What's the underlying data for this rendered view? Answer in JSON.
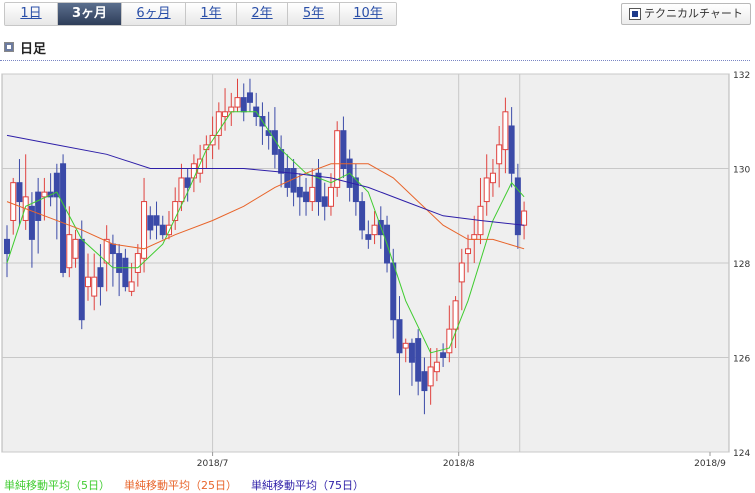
{
  "tabs": [
    {
      "label": "1日",
      "active": false
    },
    {
      "label": "3ヶ月",
      "active": true
    },
    {
      "label": "6ヶ月",
      "active": false
    },
    {
      "label": "1年",
      "active": false
    },
    {
      "label": "2年",
      "active": false
    },
    {
      "label": "5年",
      "active": false
    },
    {
      "label": "10年",
      "active": false
    }
  ],
  "technical_button": {
    "label": "テクニカルチャート",
    "icon": "window-icon"
  },
  "section_title": "日足",
  "colors": {
    "up": "#e0423e",
    "down": "#3b4aa8",
    "ma5": "#3fcc2f",
    "ma25": "#e8642a",
    "ma75": "#2e1fa8",
    "grid": "#c8c8c8",
    "bg": "#efefef"
  },
  "chart_data": {
    "type": "candlestick",
    "ylim": [
      124,
      132
    ],
    "y_ticks": [
      "132",
      "130",
      "128",
      "126",
      "124"
    ],
    "x_labels": [
      "2018/7",
      "2018/8",
      "2018/9"
    ],
    "candles": [
      [
        128.5,
        128.2,
        128.8,
        127.7
      ],
      [
        128.9,
        129.7,
        129.8,
        128.6
      ],
      [
        129.7,
        129.3,
        130.2,
        128.8
      ],
      [
        128.9,
        129.4,
        130.3,
        128.7
      ],
      [
        129.2,
        128.5,
        129.5,
        127.9
      ],
      [
        129.5,
        128.9,
        129.8,
        128.2
      ],
      [
        129.4,
        129.5,
        129.8,
        128.9
      ],
      [
        129.5,
        129.4,
        129.9,
        129.2
      ],
      [
        129.9,
        129.4,
        130.1,
        128.5
      ],
      [
        130.1,
        127.8,
        130.3,
        127.7
      ],
      [
        127.9,
        128.6,
        129.2,
        127.7
      ],
      [
        128.1,
        128.5,
        128.7,
        127.9
      ],
      [
        128.5,
        126.8,
        128.9,
        126.6
      ],
      [
        127.5,
        127.7,
        128.2,
        127.2
      ],
      [
        127.3,
        127.7,
        128.2,
        127.0
      ],
      [
        127.9,
        127.5,
        128.4,
        127.1
      ],
      [
        128.0,
        128.5,
        128.8,
        127.4
      ],
      [
        128.4,
        128.2,
        128.6,
        127.5
      ],
      [
        128.2,
        127.8,
        128.4,
        127.3
      ],
      [
        128.1,
        127.5,
        128.3,
        127.4
      ],
      [
        127.4,
        127.6,
        128.0,
        127.3
      ],
      [
        127.8,
        128.2,
        128.4,
        127.5
      ],
      [
        128.1,
        129.3,
        129.8,
        127.8
      ],
      [
        129.0,
        128.7,
        129.2,
        128.5
      ],
      [
        129.0,
        128.8,
        129.3,
        128.5
      ],
      [
        128.8,
        128.6,
        129.0,
        128.5
      ],
      [
        128.6,
        128.8,
        129.1,
        128.5
      ],
      [
        128.9,
        129.3,
        129.6,
        128.7
      ],
      [
        129.3,
        129.8,
        130.1,
        129.1
      ],
      [
        129.8,
        129.6,
        130.0,
        129.3
      ],
      [
        129.8,
        130.1,
        130.3,
        129.5
      ],
      [
        129.9,
        130.2,
        130.5,
        129.7
      ],
      [
        130.4,
        130.5,
        130.7,
        130.0
      ],
      [
        130.5,
        130.7,
        131.1,
        130.2
      ],
      [
        130.7,
        131.2,
        131.4,
        130.4
      ],
      [
        131.1,
        131.2,
        131.7,
        130.8
      ],
      [
        131.2,
        131.3,
        131.6,
        130.9
      ],
      [
        131.3,
        131.5,
        131.9,
        131.2
      ],
      [
        131.5,
        131.2,
        131.8,
        131.0
      ],
      [
        131.6,
        131.4,
        131.9,
        131.2
      ],
      [
        131.3,
        131.1,
        131.6,
        130.9
      ],
      [
        131.1,
        130.9,
        131.4,
        130.5
      ],
      [
        130.8,
        130.7,
        131.2,
        130.4
      ],
      [
        130.8,
        130.3,
        131.3,
        130.0
      ],
      [
        130.4,
        129.9,
        130.7,
        129.6
      ],
      [
        130.0,
        129.6,
        130.3,
        129.4
      ],
      [
        130.0,
        129.5,
        130.2,
        129.2
      ],
      [
        129.6,
        129.4,
        129.9,
        129.0
      ],
      [
        129.5,
        129.3,
        129.8,
        129.0
      ],
      [
        129.3,
        129.6,
        130.0,
        129.1
      ],
      [
        129.9,
        129.3,
        130.2,
        129.0
      ],
      [
        129.4,
        129.2,
        129.7,
        128.9
      ],
      [
        129.2,
        129.6,
        129.9,
        129.0
      ],
      [
        129.6,
        130.8,
        131.0,
        129.4
      ],
      [
        130.8,
        130.0,
        131.1,
        129.8
      ],
      [
        130.2,
        129.6,
        130.4,
        129.3
      ],
      [
        129.8,
        129.3,
        130.1,
        129.0
      ],
      [
        129.3,
        128.7,
        129.5,
        128.5
      ],
      [
        128.6,
        128.5,
        128.9,
        128.3
      ],
      [
        128.6,
        128.8,
        129.1,
        128.4
      ],
      [
        128.9,
        128.6,
        129.2,
        128.3
      ],
      [
        128.8,
        128.0,
        129.0,
        127.8
      ],
      [
        128.0,
        126.8,
        128.3,
        126.4
      ],
      [
        126.8,
        126.1,
        127.3,
        125.2
      ],
      [
        126.2,
        126.3,
        126.4,
        125.9
      ],
      [
        126.3,
        125.9,
        126.4,
        125.4
      ],
      [
        126.4,
        125.5,
        126.6,
        125.2
      ],
      [
        125.7,
        125.3,
        126.0,
        124.8
      ],
      [
        125.4,
        125.8,
        126.2,
        125.0
      ],
      [
        125.7,
        125.9,
        126.2,
        125.5
      ],
      [
        126.1,
        126.0,
        126.3,
        125.8
      ],
      [
        126.1,
        126.6,
        127.1,
        125.9
      ],
      [
        126.6,
        127.2,
        127.3,
        126.2
      ],
      [
        127.6,
        128.0,
        128.3,
        127.0
      ],
      [
        128.2,
        128.3,
        128.6,
        127.8
      ],
      [
        128.5,
        128.6,
        129.0,
        128.0
      ],
      [
        128.6,
        129.2,
        129.8,
        128.4
      ],
      [
        129.3,
        129.8,
        130.3,
        129.0
      ],
      [
        129.7,
        129.9,
        130.2,
        129.4
      ],
      [
        130.1,
        130.5,
        130.9,
        129.6
      ],
      [
        130.4,
        131.2,
        131.5,
        129.9
      ],
      [
        130.9,
        129.9,
        131.3,
        129.6
      ],
      [
        129.8,
        128.6,
        130.1,
        128.3
      ],
      [
        128.8,
        129.1,
        129.3,
        128.5
      ]
    ],
    "series": [
      {
        "name": "単純移動平均（5日）",
        "color": "#3fcc2f",
        "values": [
          [
            0,
            128.0
          ],
          [
            3,
            129.2
          ],
          [
            8,
            129.5
          ],
          [
            12,
            128.5
          ],
          [
            17,
            127.9
          ],
          [
            21,
            127.9
          ],
          [
            25,
            128.4
          ],
          [
            29,
            129.5
          ],
          [
            32,
            130.4
          ],
          [
            36,
            131.2
          ],
          [
            40,
            131.2
          ],
          [
            44,
            130.4
          ],
          [
            48,
            129.9
          ],
          [
            52,
            129.7
          ],
          [
            55,
            129.9
          ],
          [
            58,
            129.5
          ],
          [
            61,
            128.4
          ],
          [
            64,
            127.2
          ],
          [
            68,
            126.1
          ],
          [
            71,
            126.2
          ],
          [
            74,
            127.2
          ],
          [
            78,
            128.9
          ],
          [
            81,
            129.7
          ],
          [
            83,
            129.4
          ]
        ]
      },
      {
        "name": "単純移動平均（25日）",
        "color": "#e8642a",
        "values": [
          [
            0,
            129.3
          ],
          [
            6,
            129.0
          ],
          [
            12,
            128.7
          ],
          [
            17,
            128.4
          ],
          [
            22,
            128.3
          ],
          [
            27,
            128.6
          ],
          [
            33,
            128.9
          ],
          [
            38,
            129.2
          ],
          [
            43,
            129.6
          ],
          [
            48,
            129.9
          ],
          [
            52,
            130.1
          ],
          [
            58,
            130.1
          ],
          [
            62,
            129.8
          ],
          [
            66,
            129.3
          ],
          [
            70,
            128.8
          ],
          [
            74,
            128.5
          ],
          [
            78,
            128.5
          ],
          [
            83,
            128.3
          ]
        ]
      },
      {
        "name": "単純移動平均（75日）",
        "color": "#2e1fa8",
        "values": [
          [
            0,
            130.7
          ],
          [
            8,
            130.5
          ],
          [
            16,
            130.3
          ],
          [
            23,
            130.0
          ],
          [
            30,
            130.0
          ],
          [
            38,
            130.0
          ],
          [
            46,
            129.9
          ],
          [
            52,
            129.8
          ],
          [
            58,
            129.6
          ],
          [
            64,
            129.3
          ],
          [
            70,
            129.0
          ],
          [
            76,
            128.9
          ],
          [
            83,
            128.8
          ]
        ]
      }
    ]
  }
}
